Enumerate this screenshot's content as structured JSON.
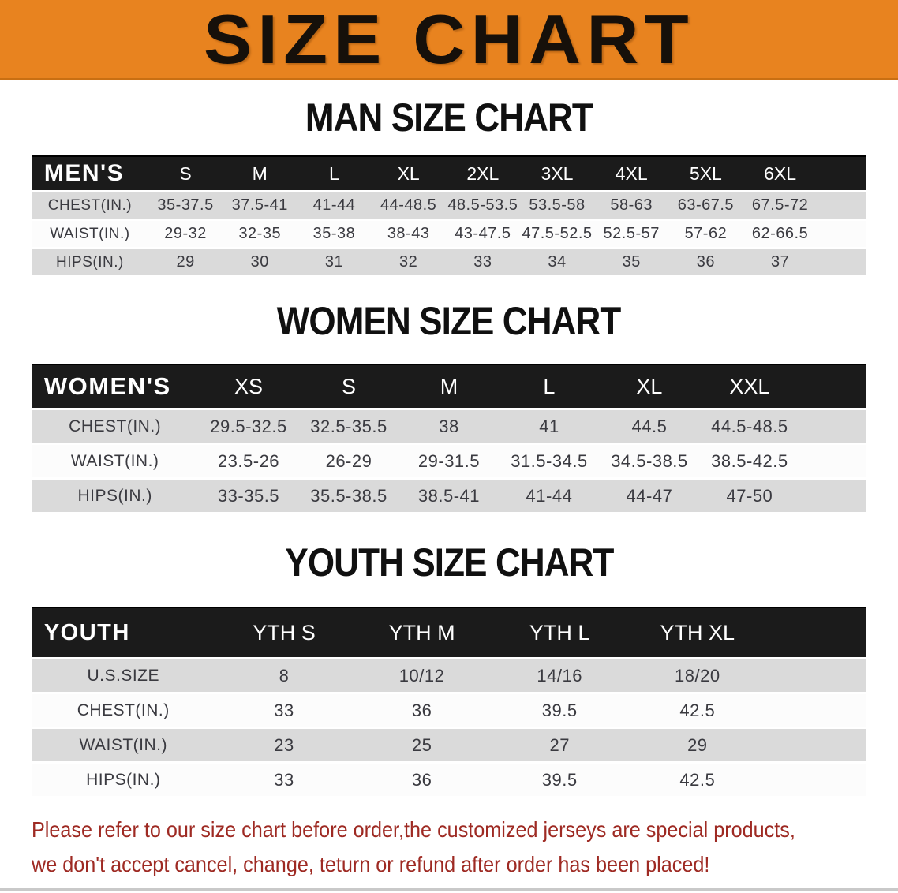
{
  "banner": {
    "title": "SIZE CHART",
    "bg_color": "#e8831f",
    "text_color": "#16100a"
  },
  "sections": {
    "men": {
      "heading": "MAN SIZE CHART"
    },
    "women": {
      "heading": "WOMEN SIZE CHART"
    },
    "youth": {
      "heading": "YOUTH SIZE CHART"
    }
  },
  "tables": {
    "men": {
      "label": "MEN'S",
      "columns": [
        "S",
        "M",
        "L",
        "XL",
        "2XL",
        "3XL",
        "4XL",
        "5XL",
        "6XL"
      ],
      "rows": [
        {
          "label": "CHEST(IN.)",
          "values": [
            "35-37.5",
            "37.5-41",
            "41-44",
            "44-48.5",
            "48.5-53.5",
            "53.5-58",
            "58-63",
            "63-67.5",
            "67.5-72"
          ]
        },
        {
          "label": "WAIST(IN.)",
          "values": [
            "29-32",
            "32-35",
            "35-38",
            "38-43",
            "43-47.5",
            "47.5-52.5",
            "52.5-57",
            "57-62",
            "62-66.5"
          ]
        },
        {
          "label": "HIPS(IN.)",
          "values": [
            "29",
            "30",
            "31",
            "32",
            "33",
            "34",
            "35",
            "36",
            "37"
          ]
        }
      ]
    },
    "women": {
      "label": "WOMEN'S",
      "columns": [
        "XS",
        "S",
        "M",
        "L",
        "XL",
        "XXL"
      ],
      "rows": [
        {
          "label": "CHEST(IN.)",
          "values": [
            "29.5-32.5",
            "32.5-35.5",
            "38",
            "41",
            "44.5",
            "44.5-48.5"
          ]
        },
        {
          "label": "WAIST(IN.)",
          "values": [
            "23.5-26",
            "26-29",
            "29-31.5",
            "31.5-34.5",
            "34.5-38.5",
            "38.5-42.5"
          ]
        },
        {
          "label": "HIPS(IN.)",
          "values": [
            "33-35.5",
            "35.5-38.5",
            "38.5-41",
            "41-44",
            "44-47",
            "47-50"
          ]
        }
      ]
    },
    "youth": {
      "label": "YOUTH",
      "columns": [
        "YTH S",
        "YTH M",
        "YTH L",
        "YTH XL"
      ],
      "rows": [
        {
          "label": "U.S.SIZE",
          "values": [
            "8",
            "10/12",
            "14/16",
            "18/20"
          ]
        },
        {
          "label": "CHEST(IN.)",
          "values": [
            "33",
            "36",
            "39.5",
            "42.5"
          ]
        },
        {
          "label": "WAIST(IN.)",
          "values": [
            "23",
            "25",
            "27",
            "29"
          ]
        },
        {
          "label": "HIPS(IN.)",
          "values": [
            "33",
            "36",
            "39.5",
            "42.5"
          ]
        }
      ]
    }
  },
  "footer": {
    "line1": "Please refer to our size chart before order,the customized jerseys are special products,",
    "line2": "we don't accept cancel, change, teturn or refund after order has been placed!"
  },
  "colors": {
    "banner_orange": "#e8831f",
    "header_bar_black": "#1b1b1b",
    "row_shaded_gray": "#dadada",
    "row_plain_white": "#fcfcfc",
    "note_red": "#9e2a23"
  }
}
